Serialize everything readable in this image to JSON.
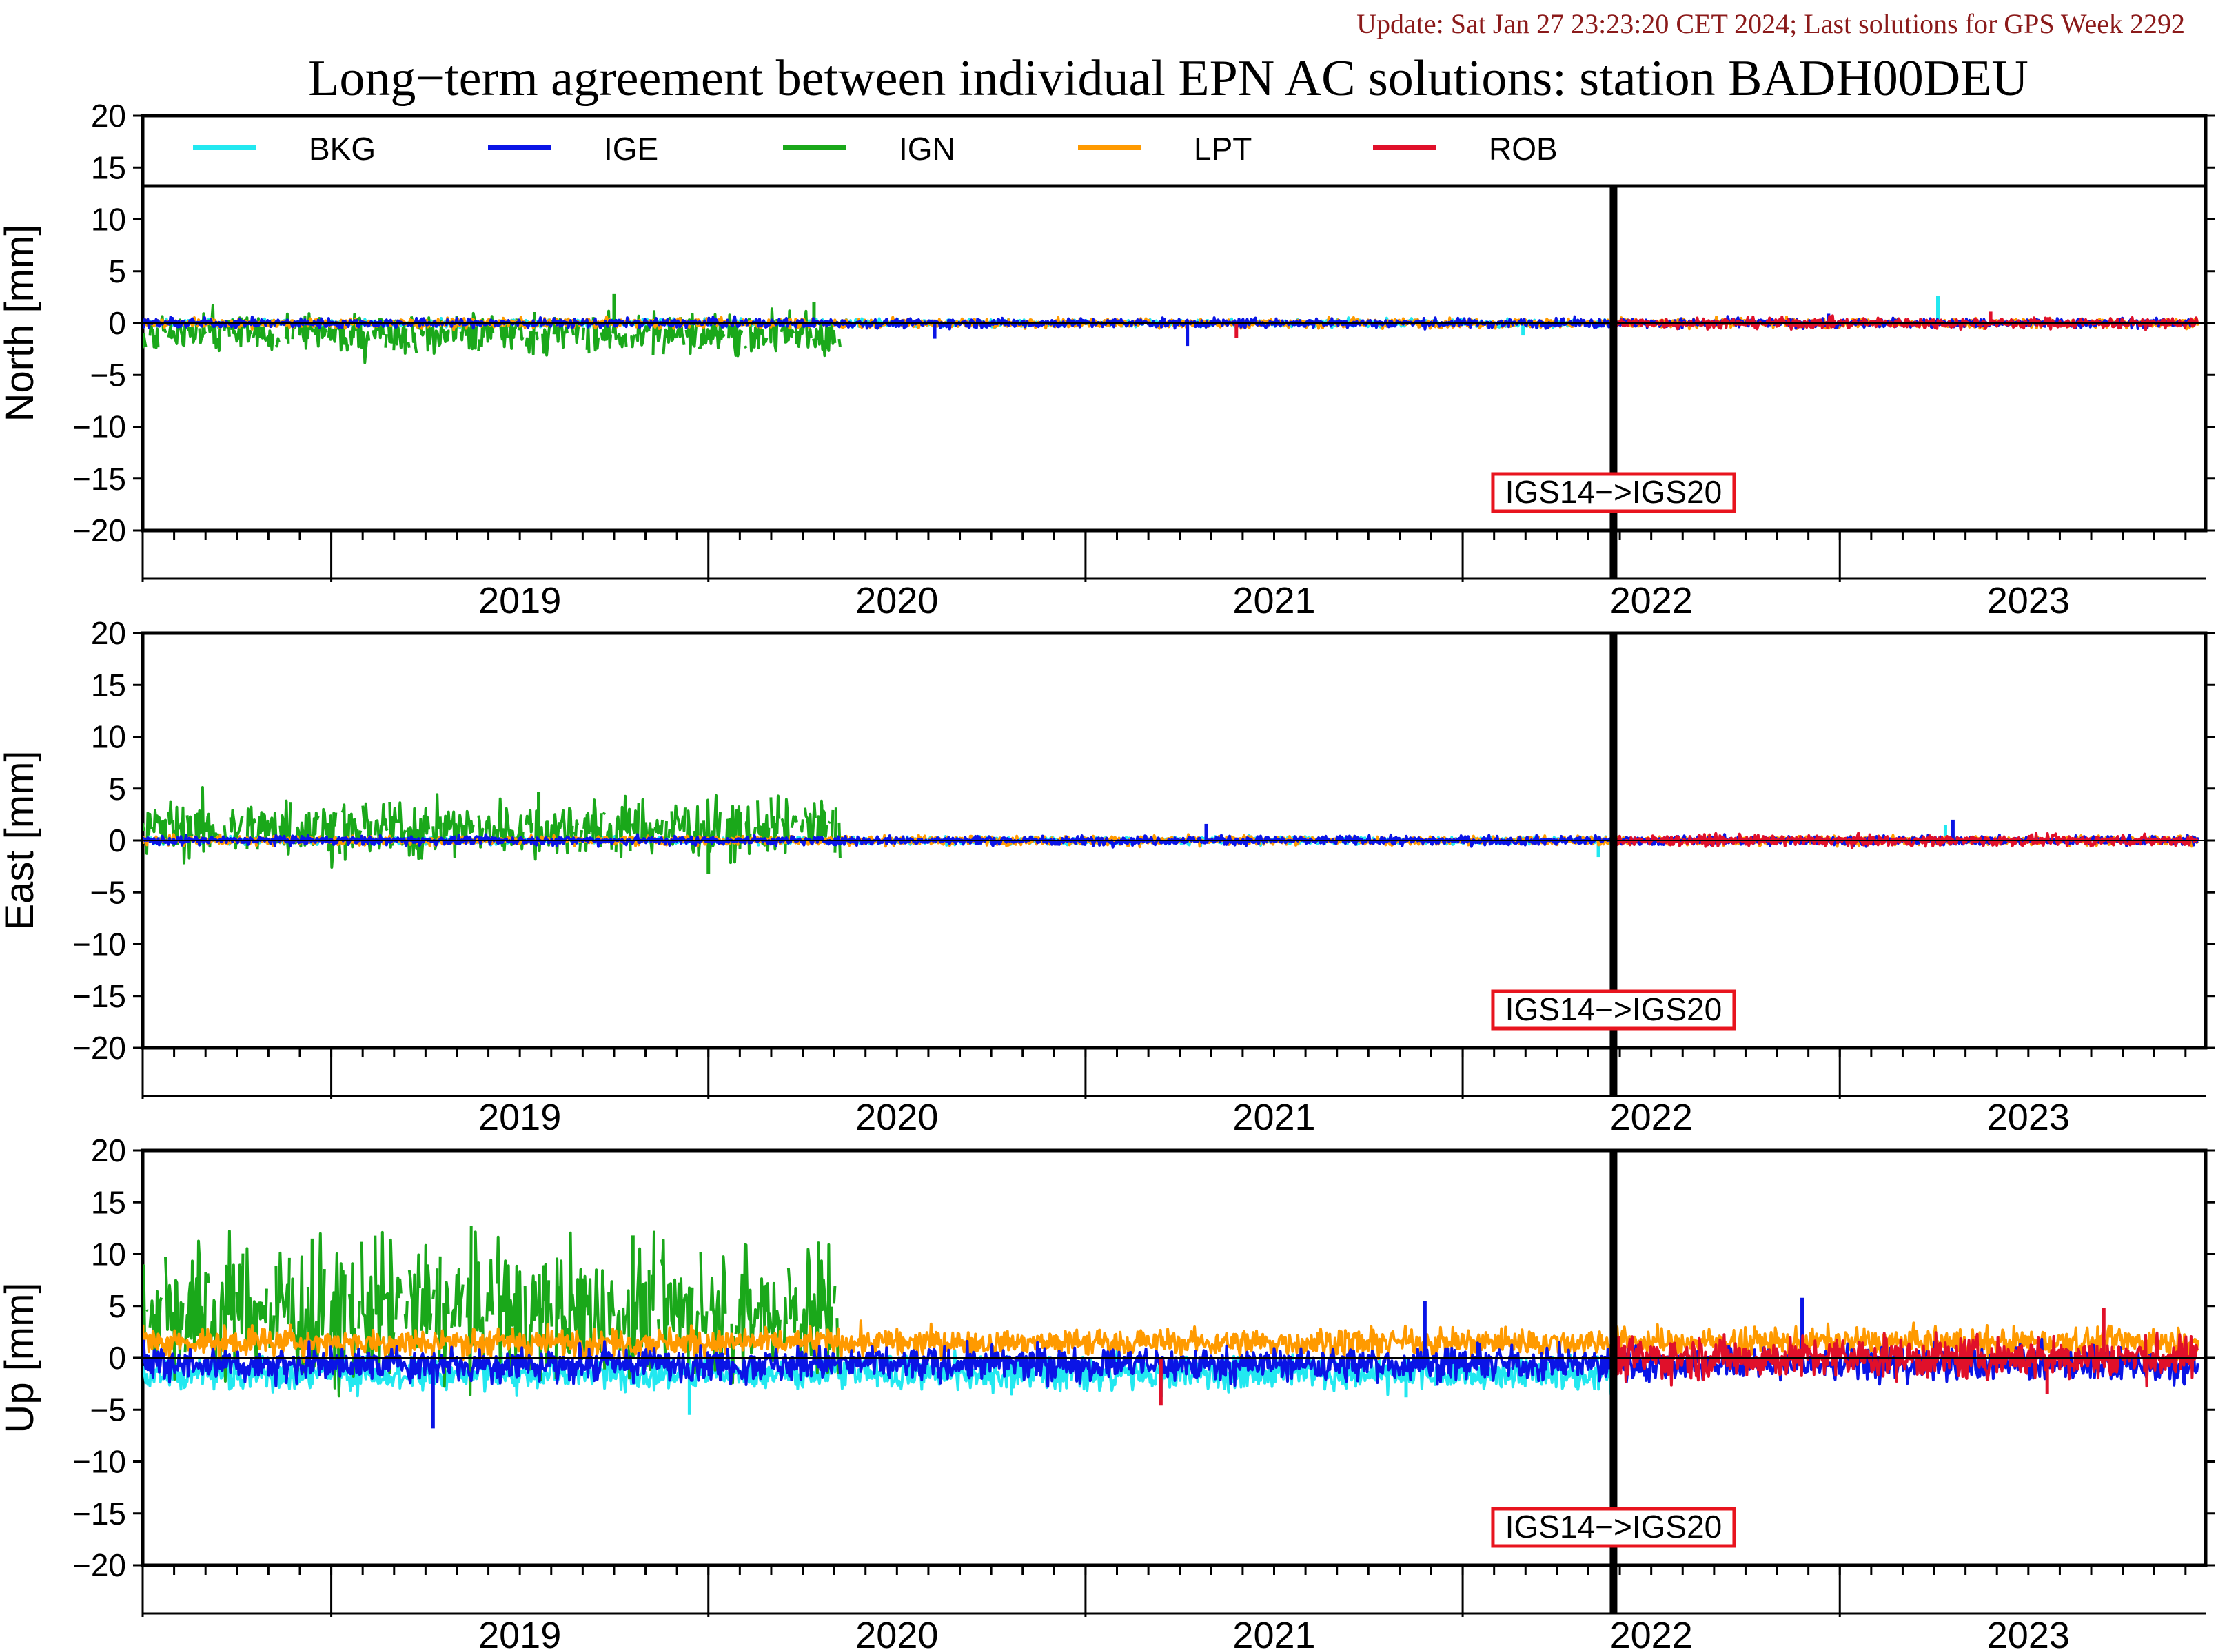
{
  "header": {
    "update_text": "Update: Sat Jan 27 23:23:20 CET 2024; Last solutions for GPS Week 2292",
    "update_color": "#8b1a1a",
    "title": "Long−term agreement between individual EPN AC solutions: station BADH00DEU"
  },
  "legend": [
    {
      "name": "BKG",
      "color": "#22e8f0"
    },
    {
      "name": "IGE",
      "color": "#0a14e6"
    },
    {
      "name": "IGN",
      "color": "#1aa81a"
    },
    {
      "name": "LPT",
      "color": "#ff9a00"
    },
    {
      "name": "ROB",
      "color": "#e0102a"
    }
  ],
  "annotation": {
    "text": "IGS14−>IGS20",
    "box_color": "#e8141e"
  },
  "chart_data": [
    {
      "type": "line",
      "ylabel": "North [mm]",
      "ylim": [
        -20,
        20
      ],
      "yticks": [
        "20",
        "15",
        "10",
        "5",
        "0",
        "−5",
        "−10",
        "−15",
        "−20"
      ],
      "xlim": [
        2018.5,
        2023.97
      ],
      "xticks": [
        "2019",
        "2020",
        "2021",
        "2022",
        "2023"
      ],
      "frame_change": 2022.4,
      "series": [
        {
          "name": "BKG",
          "noise": 0.25,
          "start": 2018.5,
          "end": 2022.4,
          "spikes": [
            [
              2023.26,
              2.6
            ],
            [
              2022.16,
              -1.2
            ]
          ]
        },
        {
          "name": "IGE",
          "noise": 0.3,
          "start": 2018.5,
          "end": 2023.95,
          "spikes": [
            [
              2020.6,
              -1.5
            ],
            [
              2021.27,
              -2.2
            ],
            [
              2022.97,
              0.9
            ]
          ]
        },
        {
          "name": "IGN",
          "noise": 1.3,
          "bias": -1.0,
          "start": 2018.5,
          "end": 2020.35,
          "gappy": true,
          "spikes": [
            [
              2019.75,
              2.8
            ],
            [
              2020.28,
              2.0
            ]
          ]
        },
        {
          "name": "LPT",
          "noise": 0.3,
          "start": 2018.5,
          "end": 2023.95,
          "spikes": []
        },
        {
          "name": "ROB",
          "noise": 0.35,
          "start": 2022.4,
          "end": 2023.95,
          "spikes": [
            [
              2021.4,
              -1.4
            ],
            [
              2023.4,
              1.1
            ]
          ]
        }
      ]
    },
    {
      "type": "line",
      "ylabel": "East [mm]",
      "ylim": [
        -20,
        20
      ],
      "yticks": [
        "20",
        "15",
        "10",
        "5",
        "0",
        "−5",
        "−10",
        "−15",
        "−20"
      ],
      "xlim": [
        2018.5,
        2023.97
      ],
      "xticks": [
        "2019",
        "2020",
        "2021",
        "2022",
        "2023"
      ],
      "frame_change": 2022.4,
      "series": [
        {
          "name": "BKG",
          "noise": 0.25,
          "start": 2018.5,
          "end": 2022.4,
          "spikes": [
            [
              2022.36,
              -1.6
            ],
            [
              2023.28,
              1.5
            ]
          ]
        },
        {
          "name": "IGE",
          "noise": 0.3,
          "start": 2018.5,
          "end": 2023.95,
          "spikes": [
            [
              2021.32,
              1.6
            ],
            [
              2022.4,
              3.0
            ],
            [
              2023.3,
              2.0
            ]
          ]
        },
        {
          "name": "IGN",
          "noise": 1.8,
          "bias": 1.2,
          "start": 2018.5,
          "end": 2020.35,
          "gappy": true,
          "spikes": [
            [
              2019.55,
              4.7
            ],
            [
              2020.0,
              -3.2
            ],
            [
              2020.3,
              3.5
            ]
          ]
        },
        {
          "name": "LPT",
          "noise": 0.3,
          "start": 2018.5,
          "end": 2023.95,
          "spikes": []
        },
        {
          "name": "ROB",
          "noise": 0.35,
          "start": 2022.4,
          "end": 2023.95,
          "spikes": []
        }
      ]
    },
    {
      "type": "line",
      "ylabel": "Up [mm]",
      "ylim": [
        -20,
        20
      ],
      "yticks": [
        "20",
        "15",
        "10",
        "5",
        "0",
        "−5",
        "−10",
        "−15",
        "−20"
      ],
      "xlim": [
        2018.5,
        2023.97
      ],
      "xticks": [
        "2019",
        "2020",
        "2021",
        "2022",
        "2023"
      ],
      "frame_change": 2022.4,
      "series": [
        {
          "name": "BKG",
          "noise": 0.9,
          "bias": -1.5,
          "start": 2018.5,
          "end": 2022.4,
          "spikes": [
            [
              2019.95,
              -5.5
            ],
            [
              2021.85,
              -3.8
            ]
          ]
        },
        {
          "name": "IGE",
          "noise": 1.1,
          "bias": -0.6,
          "start": 2018.5,
          "end": 2023.95,
          "spikes": [
            [
              2019.27,
              -6.8
            ],
            [
              2021.9,
              5.5
            ],
            [
              2022.9,
              5.8
            ]
          ]
        },
        {
          "name": "IGN",
          "noise": 4.0,
          "bias": 4.5,
          "start": 2018.5,
          "end": 2020.35,
          "gappy": true,
          "spikes": [
            [
              2019.8,
              11.8
            ],
            [
              2018.95,
              11.5
            ]
          ]
        },
        {
          "name": "LPT",
          "noise": 0.7,
          "bias": 1.5,
          "start": 2018.5,
          "end": 2023.95,
          "spikes": [
            [
              2018.5,
              3.2
            ]
          ]
        },
        {
          "name": "ROB",
          "noise": 1.4,
          "bias": 0.0,
          "start": 2022.4,
          "end": 2023.95,
          "spikes": [
            [
              2021.2,
              -4.6
            ],
            [
              2023.7,
              4.8
            ],
            [
              2023.55,
              -3.5
            ]
          ]
        }
      ]
    }
  ]
}
